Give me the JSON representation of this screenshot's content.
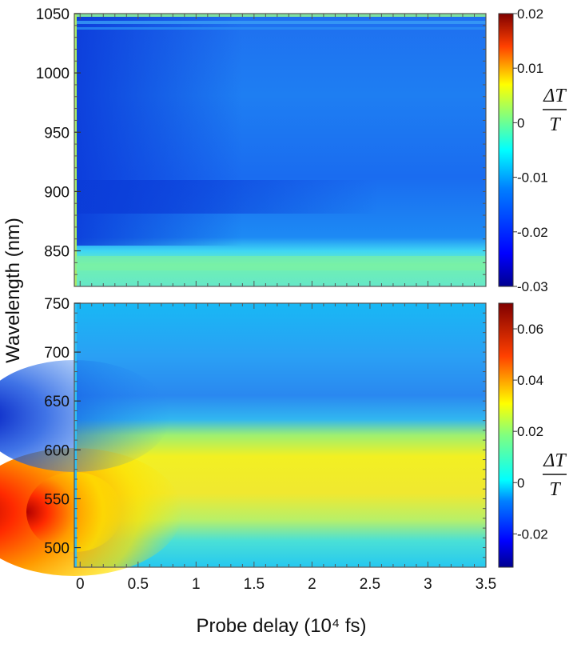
{
  "chart_data": [
    {
      "type": "heatmap",
      "panel": "top",
      "x": [
        0,
        0.5,
        1,
        1.5,
        2,
        2.5,
        3,
        3.5
      ],
      "xlim": [
        -0.05,
        3.5
      ],
      "ylim": [
        820,
        1050
      ],
      "y_ticks": [
        850,
        900,
        950,
        1000,
        1050
      ],
      "y_tick_labels": [
        "850",
        "900",
        "950",
        "1000",
        "1050"
      ],
      "colorbar": {
        "range": [
          -0.03,
          0.02
        ],
        "ticks": [
          0.02,
          0.01,
          0,
          -0.01,
          -0.02,
          -0.03
        ],
        "tick_labels": [
          "0.02",
          "0.01",
          "0",
          "-0.01",
          "-0.02",
          "-0.03"
        ],
        "label_numerator": "ΔT",
        "label_denominator": "T"
      },
      "features": [
        {
          "wavelength_range": [
            820,
            845
          ],
          "delay_range": [
            0,
            3.5
          ],
          "value": 0.003
        },
        {
          "wavelength_range": [
            880,
            910
          ],
          "delay_range": [
            0,
            2
          ],
          "value": -0.012
        },
        {
          "wavelength_range": [
            860,
            1050
          ],
          "delay_range": [
            0,
            0.6
          ],
          "value": -0.013
        }
      ]
    },
    {
      "type": "heatmap",
      "panel": "bottom",
      "x": [
        0,
        0.5,
        1,
        1.5,
        2,
        2.5,
        3,
        3.5
      ],
      "xlim": [
        -0.05,
        3.5
      ],
      "ylim": [
        480,
        750
      ],
      "y_ticks": [
        500,
        550,
        600,
        650,
        700,
        750
      ],
      "y_tick_labels": [
        "500",
        "550",
        "600",
        "650",
        "700",
        "750"
      ],
      "colorbar": {
        "range": [
          -0.033,
          0.07
        ],
        "ticks": [
          0.06,
          0.04,
          0.02,
          0,
          -0.02
        ],
        "tick_labels": [
          "0.06",
          "0.04",
          "0.02",
          "0",
          "-0.02"
        ],
        "label_numerator": "ΔT",
        "label_denominator": "T"
      },
      "features": [
        {
          "wavelength_range": [
            500,
            600
          ],
          "delay_range": [
            0,
            0.1
          ],
          "value": 0.07
        },
        {
          "wavelength_range": [
            520,
            600
          ],
          "delay_range": [
            0.5,
            3.5
          ],
          "value": 0.025
        },
        {
          "wavelength_range": [
            620,
            660
          ],
          "delay_range": [
            0,
            0.5
          ],
          "value": -0.028
        }
      ]
    }
  ],
  "x_tick_labels": [
    "0",
    "0.5",
    "1",
    "1.5",
    "2",
    "2.5",
    "3",
    "3.5"
  ],
  "xlabel": "Probe delay  (10⁴ fs)",
  "ylabel": "Wavelength (nm)"
}
